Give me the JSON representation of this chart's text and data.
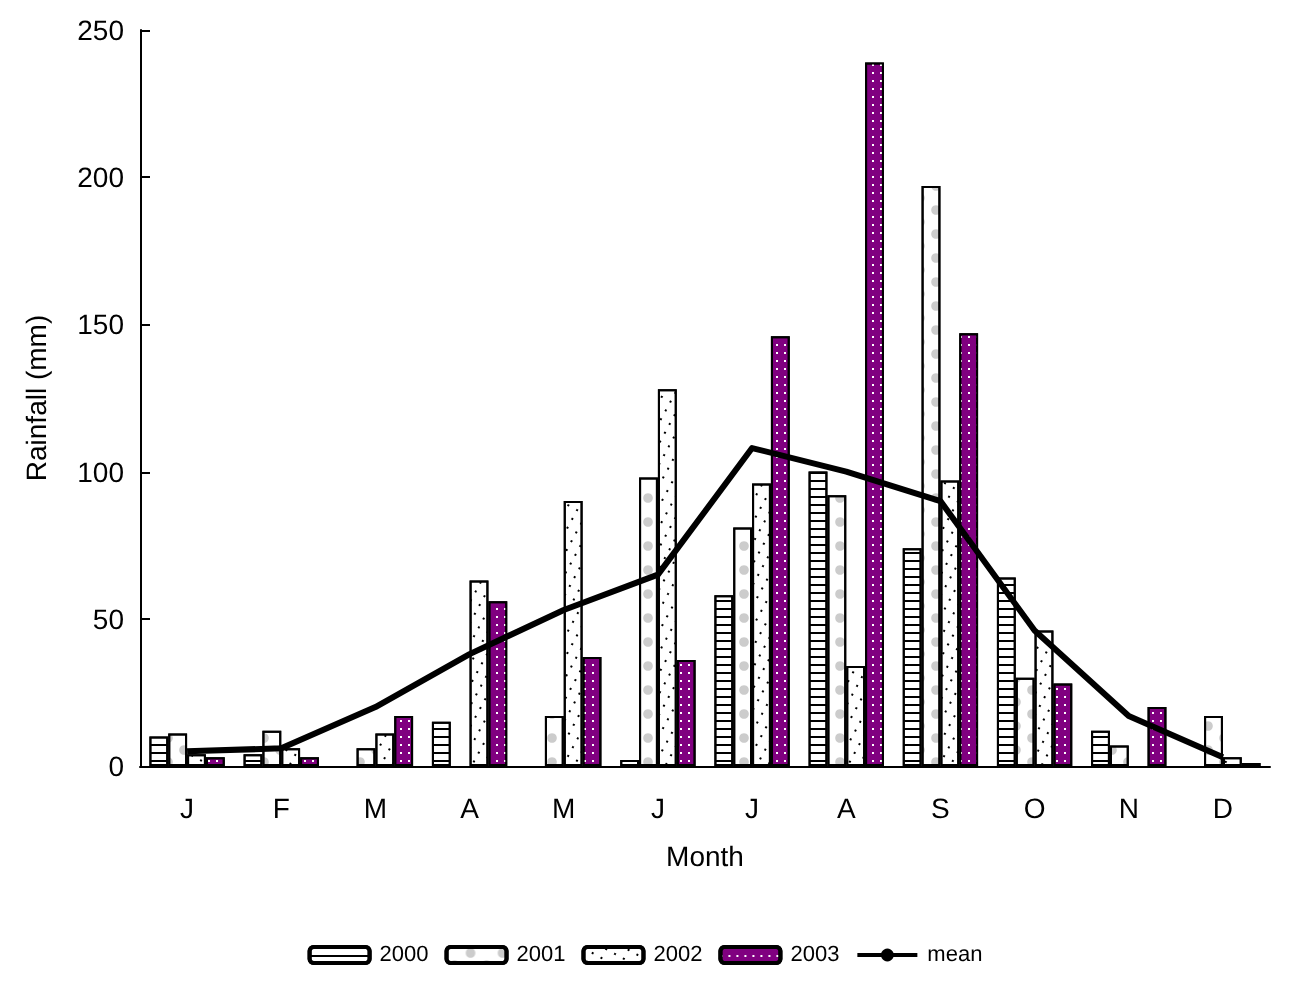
{
  "chart_data": {
    "type": "bar",
    "xlabel": "Month",
    "ylabel": "Rainfall (mm)",
    "categories": [
      "J",
      "F",
      "M",
      "A",
      "M",
      "J",
      "J",
      "A",
      "S",
      "O",
      "N",
      "D"
    ],
    "series": [
      {
        "name": "2000",
        "color": "#ffffff",
        "values": [
          10,
          4,
          null,
          15,
          null,
          2,
          58,
          100,
          74,
          64,
          12,
          null
        ]
      },
      {
        "name": "2001",
        "color": "#ffffff",
        "values": [
          11,
          12,
          6,
          null,
          17,
          98,
          81,
          92,
          197,
          30,
          7,
          17
        ]
      },
      {
        "name": "2002",
        "color": "#ffffff",
        "values": [
          4,
          6,
          11,
          63,
          90,
          128,
          96,
          34,
          97,
          46,
          null,
          3
        ]
      },
      {
        "name": "2003",
        "color": "#800080",
        "values": [
          3,
          3,
          17,
          56,
          37,
          36,
          146,
          239,
          147,
          28,
          20,
          1
        ]
      },
      {
        "name": "mean",
        "type": "line",
        "color": "#000000",
        "values": [
          5,
          6,
          20,
          38,
          53,
          65,
          108,
          100,
          90,
          46,
          17,
          3
        ]
      }
    ],
    "ylim": [
      0,
      250
    ],
    "yticks": [
      0,
      50,
      100,
      150,
      200,
      250
    ],
    "grid": false,
    "legend": "bottom",
    "marker": "none",
    "line_style": "solid"
  }
}
